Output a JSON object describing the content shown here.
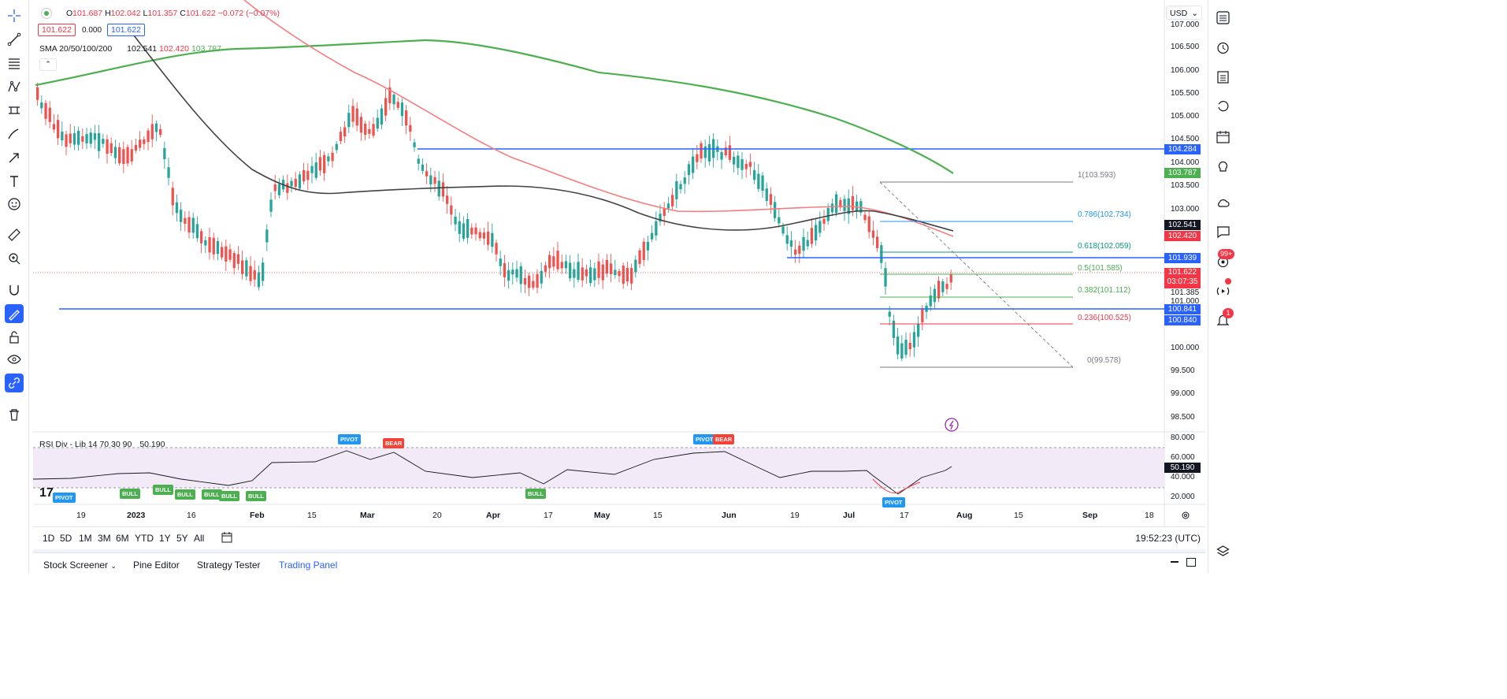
{
  "legend": {
    "ohlc": {
      "o_label": "O",
      "o": "101.687",
      "h_label": "H",
      "h": "102.042",
      "l_label": "L",
      "l": "101.357",
      "c_label": "C",
      "c": "101.622",
      "change": "−0.072 (−0.07%)"
    },
    "bid": "101.622",
    "spread": "0.000",
    "ask": "101.622",
    "sma_label": "SMA 20/50/100/200",
    "sma_values": [
      "102.541",
      "102.420",
      "103.787"
    ],
    "rsi_label": "RSI Div - Lib 14 70 30 90",
    "rsi_value": "50.190"
  },
  "currency": "USD",
  "price_axis": [
    "107.000",
    "106.500",
    "106.000",
    "105.500",
    "105.000",
    "104.500",
    "104.000",
    "103.500",
    "103.000",
    "101.385",
    "101.000",
    "100.000",
    "99.500",
    "99.000",
    "98.500"
  ],
  "price_tags": {
    "t1": {
      "value": "104.284",
      "color": "#2962ff"
    },
    "t2": {
      "value": "103.787",
      "color": "#4caf50"
    },
    "t3": {
      "value": "102.541",
      "color": "#131722"
    },
    "t4": {
      "value": "102.420",
      "color": "#f23645"
    },
    "t5": {
      "value": "101.939",
      "color": "#2962ff"
    },
    "t6": {
      "value": "101.622",
      "color": "#f23645"
    },
    "t6b": "03:07:35",
    "t7": {
      "value": "100.841",
      "color": "#2962ff"
    },
    "t8": {
      "value": "100.840",
      "color": "#2962ff"
    }
  },
  "rsi_axis": [
    "80.000",
    "60.000",
    "40.000",
    "20.000"
  ],
  "fib_levels": [
    {
      "label": "1(103.593)",
      "color": "#787b86"
    },
    {
      "label": "0.786(102.734)",
      "color": "#2196f3"
    },
    {
      "label": "0.618(102.059)",
      "color": "#089981"
    },
    {
      "label": "0.5(101.585)",
      "color": "#4caf50"
    },
    {
      "label": "0.382(101.112)",
      "color": "#4caf50"
    },
    {
      "label": "0.236(100.525)",
      "color": "#f23645"
    },
    {
      "label": "0(99.578)",
      "color": "#787b86"
    }
  ],
  "dates": [
    "19",
    "2023",
    "16",
    "Feb",
    "15",
    "Mar",
    "20",
    "Apr",
    "17",
    "May",
    "15",
    "Jun",
    "19",
    "Jul",
    "17",
    "Aug",
    "15",
    "Sep",
    "18"
  ],
  "signals": {
    "bull": "BULL",
    "pivot": "PIVOT",
    "bear": "BEAR"
  },
  "ranges": [
    "1D",
    "5D",
    "1M",
    "3M",
    "6M",
    "YTD",
    "1Y",
    "5Y",
    "All"
  ],
  "clock": "19:52:23 (UTC)",
  "tabs": [
    "Stock Screener",
    "Pine Editor",
    "Strategy Tester",
    "Trading Panel"
  ],
  "badges": {
    "ideas": "99+",
    "alerts": "1"
  },
  "icons": {
    "left": [
      "crosshair-icon",
      "trend-line-icon",
      "fib-tools-icon",
      "pattern-icon",
      "forecast-icon",
      "brush-icon",
      "arrow-icon",
      "text-icon",
      "emoji-icon",
      "ruler-icon",
      "zoom-icon",
      "magnet-icon",
      "lock-drawing-icon",
      "lock-icon",
      "eye-icon",
      "link-icon",
      "trash-icon"
    ],
    "right": [
      "watchlist-icon",
      "alarm-icon",
      "calendar-list-icon",
      "refresh-icon",
      "calendar-icon",
      "lightbulb-icon",
      "cloud-icon",
      "chat-icon",
      "ideas-icon",
      "stream-icon",
      "notification-icon",
      "layers-icon"
    ]
  },
  "colors": {
    "up": "#26a69a",
    "down": "#ef5350",
    "sma_black": "#424242",
    "sma_red": "#f77c80",
    "sma_green": "#4caf50",
    "hline": "#2962ff"
  }
}
